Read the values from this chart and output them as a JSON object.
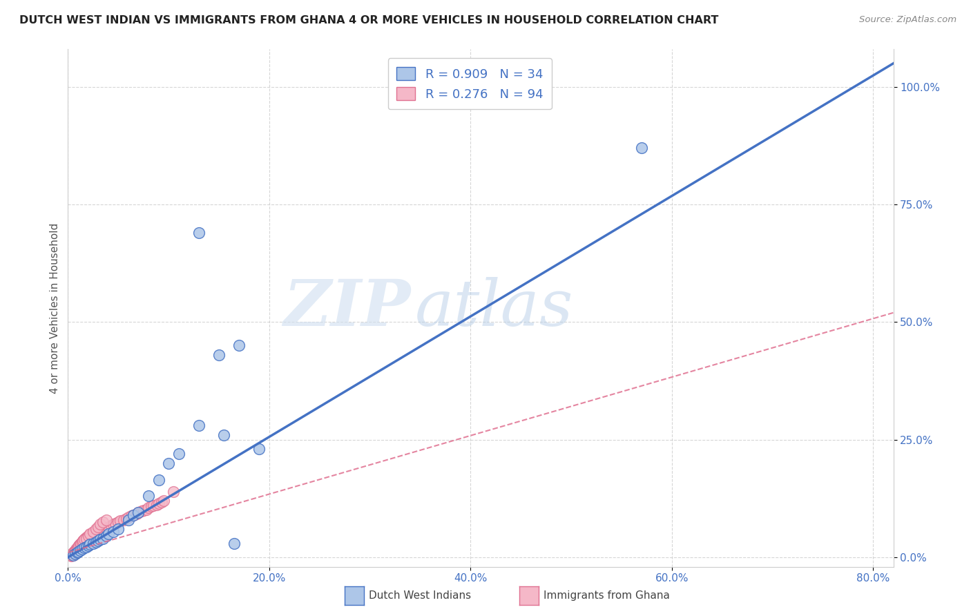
{
  "title": "DUTCH WEST INDIAN VS IMMIGRANTS FROM GHANA 4 OR MORE VEHICLES IN HOUSEHOLD CORRELATION CHART",
  "source": "Source: ZipAtlas.com",
  "ylabel": "4 or more Vehicles in Household",
  "x_tick_vals": [
    0.0,
    0.2,
    0.4,
    0.6,
    0.8
  ],
  "x_tick_labels": [
    "0.0%",
    "20.0%",
    "40.0%",
    "60.0%",
    "80.0%"
  ],
  "y_tick_vals": [
    0.0,
    0.25,
    0.5,
    0.75,
    1.0
  ],
  "y_tick_labels": [
    "0.0%",
    "25.0%",
    "50.0%",
    "75.0%",
    "100.0%"
  ],
  "xlim": [
    0.0,
    0.82
  ],
  "ylim": [
    -0.02,
    1.08
  ],
  "legend_label1": "Dutch West Indians",
  "legend_label2": "Immigrants from Ghana",
  "R1": 0.909,
  "N1": 34,
  "R2": 0.276,
  "N2": 94,
  "color_blue": "#adc6e8",
  "color_pink": "#f5b8c8",
  "line_blue": "#4472c4",
  "line_pink": "#e07090",
  "watermark_zip": "ZIP",
  "watermark_atlas": "atlas",
  "blue_line_x": [
    0.0,
    0.82
  ],
  "blue_line_y": [
    0.0,
    1.05
  ],
  "pink_line_x": [
    0.0,
    0.82
  ],
  "pink_line_y": [
    0.01,
    0.52
  ],
  "blue_x": [
    0.005,
    0.007,
    0.009,
    0.01,
    0.012,
    0.014,
    0.016,
    0.018,
    0.02,
    0.022,
    0.025,
    0.028,
    0.03,
    0.032,
    0.035,
    0.038,
    0.04,
    0.045,
    0.05,
    0.06,
    0.065,
    0.07,
    0.08,
    0.09,
    0.1,
    0.11,
    0.13,
    0.15,
    0.17,
    0.19,
    0.13,
    0.155,
    0.165,
    0.57
  ],
  "blue_y": [
    0.005,
    0.008,
    0.01,
    0.012,
    0.015,
    0.018,
    0.02,
    0.022,
    0.025,
    0.028,
    0.03,
    0.032,
    0.035,
    0.038,
    0.04,
    0.045,
    0.05,
    0.055,
    0.06,
    0.08,
    0.09,
    0.095,
    0.13,
    0.165,
    0.2,
    0.22,
    0.28,
    0.43,
    0.45,
    0.23,
    0.69,
    0.26,
    0.03,
    0.87
  ],
  "pink_x": [
    0.003,
    0.004,
    0.005,
    0.005,
    0.006,
    0.006,
    0.007,
    0.007,
    0.008,
    0.008,
    0.009,
    0.009,
    0.01,
    0.01,
    0.011,
    0.011,
    0.012,
    0.012,
    0.013,
    0.013,
    0.014,
    0.014,
    0.015,
    0.015,
    0.016,
    0.016,
    0.017,
    0.017,
    0.018,
    0.018,
    0.02,
    0.02,
    0.022,
    0.022,
    0.025,
    0.025,
    0.028,
    0.028,
    0.03,
    0.03,
    0.032,
    0.033,
    0.035,
    0.036,
    0.038,
    0.039,
    0.04,
    0.041,
    0.043,
    0.045,
    0.047,
    0.05,
    0.052,
    0.055,
    0.058,
    0.06,
    0.063,
    0.065,
    0.068,
    0.07,
    0.073,
    0.075,
    0.078,
    0.08,
    0.083,
    0.085,
    0.088,
    0.09,
    0.093,
    0.095,
    0.003,
    0.004,
    0.005,
    0.006,
    0.007,
    0.008,
    0.009,
    0.01,
    0.011,
    0.012,
    0.013,
    0.014,
    0.015,
    0.016,
    0.018,
    0.02,
    0.022,
    0.025,
    0.028,
    0.03,
    0.032,
    0.035,
    0.038,
    0.105
  ],
  "pink_y": [
    0.005,
    0.008,
    0.01,
    0.005,
    0.012,
    0.008,
    0.015,
    0.01,
    0.018,
    0.012,
    0.02,
    0.015,
    0.022,
    0.018,
    0.025,
    0.02,
    0.028,
    0.022,
    0.03,
    0.025,
    0.032,
    0.028,
    0.035,
    0.03,
    0.038,
    0.032,
    0.04,
    0.035,
    0.042,
    0.038,
    0.045,
    0.04,
    0.048,
    0.042,
    0.05,
    0.045,
    0.052,
    0.048,
    0.055,
    0.05,
    0.058,
    0.052,
    0.06,
    0.055,
    0.062,
    0.058,
    0.065,
    0.06,
    0.068,
    0.07,
    0.072,
    0.075,
    0.078,
    0.08,
    0.082,
    0.085,
    0.088,
    0.09,
    0.092,
    0.095,
    0.098,
    0.1,
    0.102,
    0.105,
    0.108,
    0.11,
    0.112,
    0.115,
    0.118,
    0.12,
    0.003,
    0.005,
    0.008,
    0.01,
    0.012,
    0.015,
    0.018,
    0.02,
    0.025,
    0.028,
    0.03,
    0.032,
    0.035,
    0.038,
    0.04,
    0.045,
    0.05,
    0.055,
    0.06,
    0.065,
    0.07,
    0.075,
    0.08,
    0.14
  ]
}
